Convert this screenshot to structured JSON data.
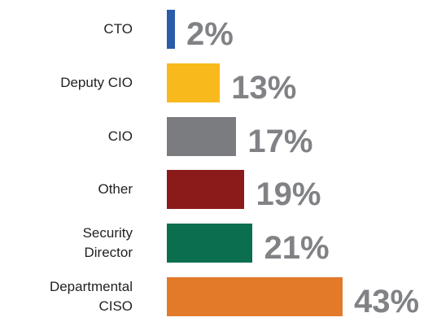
{
  "chart_data": {
    "type": "hbar",
    "categories": [
      "CTO",
      "Deputy CIO",
      "CIO",
      "Other",
      "Security\nDirector",
      "Departmental\nCISO"
    ],
    "values": [
      2,
      13,
      17,
      19,
      21,
      43
    ],
    "value_labels": [
      "2%",
      "13%",
      "17%",
      "19%",
      "21%",
      "43%"
    ],
    "colors": [
      "#2a5caa",
      "#f8b91c",
      "#7b7c80",
      "#8b1a1a",
      "#0a6e4f",
      "#e27a2a"
    ]
  }
}
